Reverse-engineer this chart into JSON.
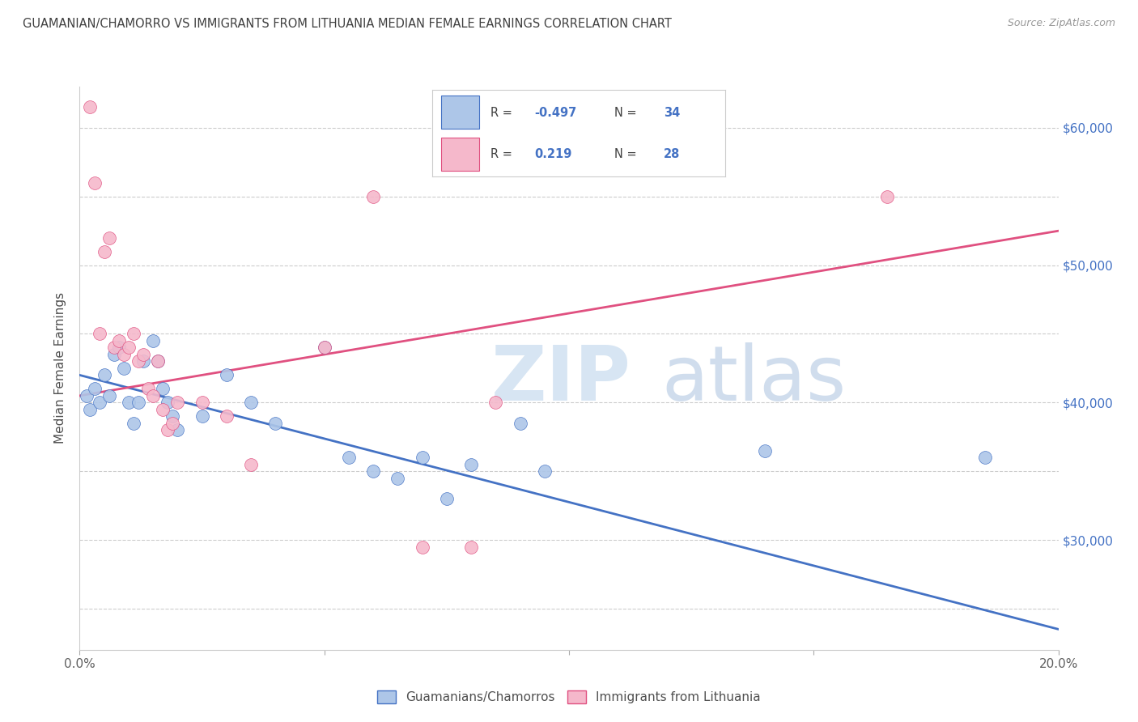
{
  "title": "GUAMANIAN/CHAMORRO VS IMMIGRANTS FROM LITHUANIA MEDIAN FEMALE EARNINGS CORRELATION CHART",
  "source": "Source: ZipAtlas.com",
  "ylabel": "Median Female Earnings",
  "ymin": 22000,
  "ymax": 63000,
  "xmin": 0.0,
  "xmax": 0.2,
  "blue_color": "#adc6e8",
  "pink_color": "#f5b8cb",
  "line_blue": "#4472c4",
  "line_pink": "#e05080",
  "title_color": "#404040",
  "right_tick_color": "#4472c4",
  "blue_scatter": [
    [
      0.0015,
      40500
    ],
    [
      0.002,
      39500
    ],
    [
      0.003,
      41000
    ],
    [
      0.004,
      40000
    ],
    [
      0.005,
      42000
    ],
    [
      0.006,
      40500
    ],
    [
      0.007,
      43500
    ],
    [
      0.008,
      44000
    ],
    [
      0.009,
      42500
    ],
    [
      0.01,
      40000
    ],
    [
      0.011,
      38500
    ],
    [
      0.012,
      40000
    ],
    [
      0.013,
      43000
    ],
    [
      0.015,
      44500
    ],
    [
      0.016,
      43000
    ],
    [
      0.017,
      41000
    ],
    [
      0.018,
      40000
    ],
    [
      0.019,
      39000
    ],
    [
      0.02,
      38000
    ],
    [
      0.025,
      39000
    ],
    [
      0.03,
      42000
    ],
    [
      0.035,
      40000
    ],
    [
      0.04,
      38500
    ],
    [
      0.05,
      44000
    ],
    [
      0.055,
      36000
    ],
    [
      0.06,
      35000
    ],
    [
      0.065,
      34500
    ],
    [
      0.07,
      36000
    ],
    [
      0.075,
      33000
    ],
    [
      0.08,
      35500
    ],
    [
      0.09,
      38500
    ],
    [
      0.095,
      35000
    ],
    [
      0.14,
      36500
    ],
    [
      0.185,
      36000
    ]
  ],
  "pink_scatter": [
    [
      0.002,
      61500
    ],
    [
      0.003,
      56000
    ],
    [
      0.004,
      45000
    ],
    [
      0.005,
      51000
    ],
    [
      0.006,
      52000
    ],
    [
      0.007,
      44000
    ],
    [
      0.008,
      44500
    ],
    [
      0.009,
      43500
    ],
    [
      0.01,
      44000
    ],
    [
      0.011,
      45000
    ],
    [
      0.012,
      43000
    ],
    [
      0.013,
      43500
    ],
    [
      0.014,
      41000
    ],
    [
      0.015,
      40500
    ],
    [
      0.016,
      43000
    ],
    [
      0.017,
      39500
    ],
    [
      0.018,
      38000
    ],
    [
      0.019,
      38500
    ],
    [
      0.02,
      40000
    ],
    [
      0.025,
      40000
    ],
    [
      0.03,
      39000
    ],
    [
      0.035,
      35500
    ],
    [
      0.05,
      44000
    ],
    [
      0.06,
      55000
    ],
    [
      0.07,
      29500
    ],
    [
      0.08,
      29500
    ],
    [
      0.085,
      40000
    ],
    [
      0.165,
      55000
    ]
  ],
  "blue_line_x": [
    0.0,
    0.2
  ],
  "blue_line_y": [
    42000,
    23500
  ],
  "pink_line_x": [
    0.0,
    0.2
  ],
  "pink_line_y": [
    40500,
    52500
  ]
}
